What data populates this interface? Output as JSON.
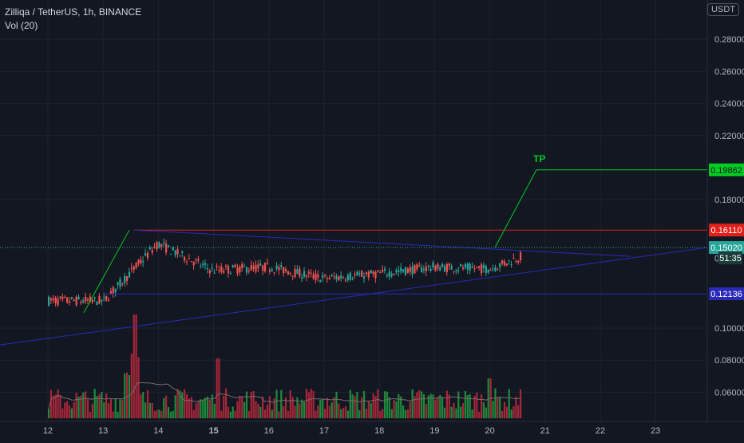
{
  "header": {
    "symbol": "Zilliqa / TetherUS, 1h, BINANCE",
    "volume_indicator": "Vol (20)",
    "currency_button": "USDT"
  },
  "colors": {
    "background": "#131722",
    "up": "#26a69a",
    "down": "#ef5350",
    "vol_up": "#1e8a3a",
    "vol_down": "#a8263a",
    "trendline": "#2a2ab8",
    "tp_line": "#00cc22",
    "red_level": "#e0201a",
    "current_price": "#26a69a"
  },
  "chart_data": {
    "type": "candlestick",
    "x_ticks": [
      "12",
      "13",
      "14",
      "15",
      "16",
      "17",
      "18",
      "19",
      "20",
      "21",
      "22",
      "23"
    ],
    "y_ticks": [
      "0.28000",
      "0.26000",
      "0.24000",
      "0.22000",
      "0.18000",
      "0.10000",
      "0.08000",
      "0.06000"
    ],
    "ylim": [
      0.05,
      0.295
    ],
    "annotations": {
      "tp_label": "TP",
      "price_tags": [
        {
          "label": "0.19862",
          "value": 0.19862,
          "color": "#00cc22",
          "text_color": "#131722"
        },
        {
          "label": "0.16110",
          "value": 0.1611,
          "color": "#e0201a",
          "text_color": "#ffffff"
        },
        {
          "label": "0.15020",
          "value": 0.1502,
          "color": "#26a69a",
          "text_color": "#ffffff"
        },
        {
          "label": "51:35",
          "value": 0.1437,
          "color": "#1a3d3a",
          "text_color": "#ffffff"
        },
        {
          "label": "0.12136",
          "value": 0.12136,
          "color": "#2a2ab8",
          "text_color": "#ffffff"
        }
      ],
      "partial_tag": "0.14"
    },
    "candles_daily_summary": [
      {
        "day": "12",
        "open": 0.117,
        "high": 0.125,
        "low": 0.113,
        "close": 0.117
      },
      {
        "day": "13",
        "open": 0.117,
        "high": 0.161,
        "low": 0.113,
        "close": 0.152
      },
      {
        "day": "14",
        "open": 0.152,
        "high": 0.16,
        "low": 0.125,
        "close": 0.136
      },
      {
        "day": "15",
        "open": 0.136,
        "high": 0.148,
        "low": 0.115,
        "close": 0.138
      },
      {
        "day": "16",
        "open": 0.138,
        "high": 0.145,
        "low": 0.127,
        "close": 0.131
      },
      {
        "day": "17",
        "open": 0.131,
        "high": 0.136,
        "low": 0.122,
        "close": 0.134
      },
      {
        "day": "18",
        "open": 0.134,
        "high": 0.143,
        "low": 0.13,
        "close": 0.138
      },
      {
        "day": "19",
        "open": 0.138,
        "high": 0.141,
        "low": 0.131,
        "close": 0.137
      },
      {
        "day": "20",
        "open": 0.137,
        "high": 0.152,
        "low": 0.135,
        "close": 0.15
      }
    ]
  }
}
